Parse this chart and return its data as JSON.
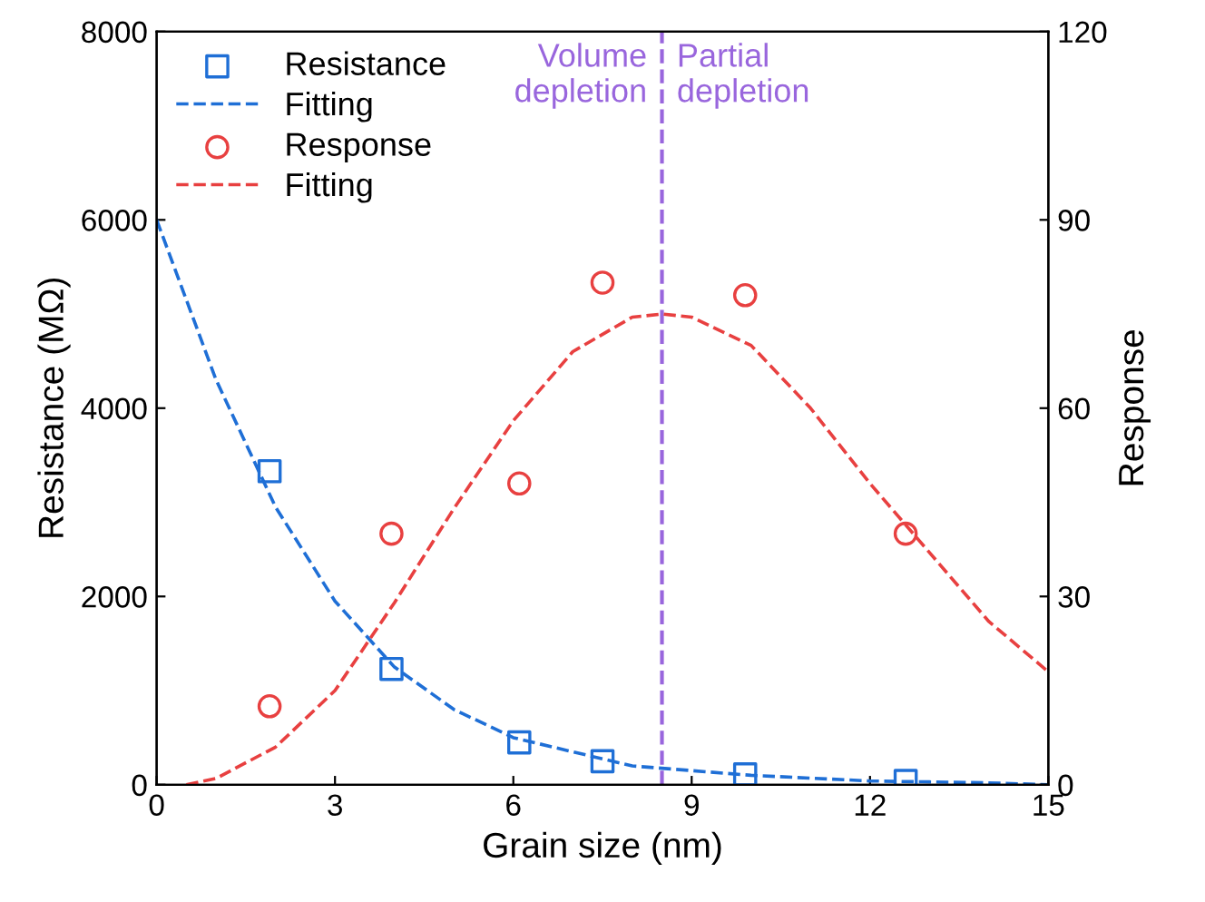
{
  "chart_data": {
    "type": "scatter",
    "xlabel": "Grain size (nm)",
    "ylabel": "Resistance (MΩ)",
    "y2label": "Response",
    "xlim": [
      0,
      15
    ],
    "xticks": [
      0,
      3,
      6,
      9,
      12,
      15
    ],
    "ylim": [
      0,
      8000
    ],
    "yticks": [
      0,
      2000,
      4000,
      6000,
      8000
    ],
    "y2lim": [
      0,
      120
    ],
    "y2ticks": [
      0,
      30,
      60,
      90,
      120
    ],
    "grid": false,
    "legend": "top left",
    "series": [
      {
        "name": "Resistance",
        "marker": "square",
        "color": "#1f6fd6",
        "x": [
          1.9,
          3.95,
          6.1,
          7.5,
          9.9,
          12.6
        ],
        "values": [
          3330,
          1230,
          450,
          250,
          110,
          40
        ]
      },
      {
        "name": "Fitting",
        "type": "line",
        "line_style": "dashed",
        "color": "#1f6fd6",
        "x": [
          0,
          1,
          2,
          3,
          4,
          5,
          6,
          7,
          8,
          9,
          10,
          11,
          12,
          13,
          14,
          15
        ],
        "values": [
          6000,
          4300,
          2950,
          1950,
          1250,
          800,
          500,
          350,
          200,
          150,
          100,
          70,
          40,
          30,
          20,
          0
        ]
      },
      {
        "name": "Response",
        "marker": "circle",
        "color": "#e84040",
        "axis": "y2",
        "x": [
          1.9,
          3.95,
          6.1,
          7.5,
          9.9,
          12.6
        ],
        "values": [
          12.5,
          40,
          48,
          80,
          78,
          40
        ]
      },
      {
        "name": "Fitting",
        "type": "line",
        "line_style": "dashed",
        "color": "#e84040",
        "axis": "y2",
        "x": [
          0.5,
          1,
          2,
          3,
          4,
          5,
          6,
          7,
          8,
          8.5,
          9,
          10,
          11,
          12,
          13,
          14,
          15
        ],
        "values": [
          0,
          1,
          6,
          15,
          29,
          44,
          58,
          69,
          74.5,
          75,
          74.5,
          70,
          60,
          48,
          37,
          26,
          18
        ]
      }
    ],
    "ref_lines": [
      {
        "axis": "x",
        "value": 8.5,
        "color": "#9966dd",
        "line_style": "dashed"
      }
    ],
    "annotations": [
      "Volume\ndepletion",
      "Partial\ndepletion"
    ]
  }
}
